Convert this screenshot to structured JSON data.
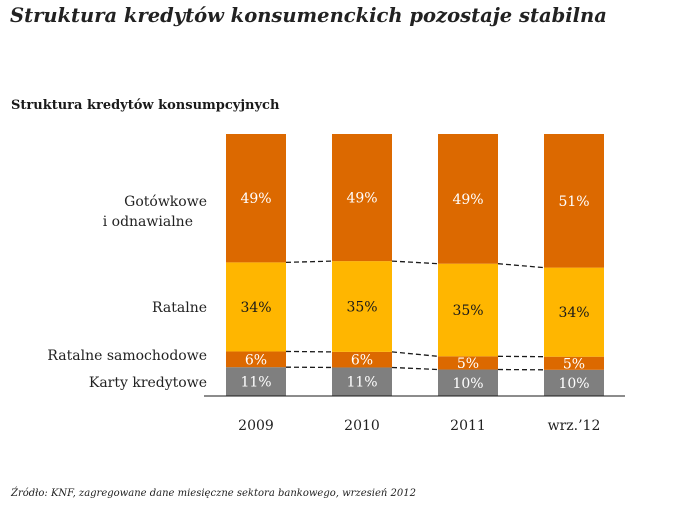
{
  "title": "Struktura kredytów konsumenckich pozostaje stabilna",
  "chart_data": {
    "type": "bar",
    "stacked": true,
    "percent": true,
    "title": "Struktura kredytów konsumpcyjnych",
    "categories": [
      "2009",
      "2010",
      "2011",
      "wrz.’12"
    ],
    "series": [
      {
        "name": "Karty kredytowe",
        "values": [
          11,
          11,
          10,
          10
        ],
        "labels": [
          "11%",
          "11%",
          "10%",
          "10%"
        ],
        "color": "#7f7f7f"
      },
      {
        "name": "Ratalne samochodowe",
        "values": [
          6,
          6,
          5,
          5
        ],
        "labels": [
          "6%",
          "6%",
          "5%",
          "5%"
        ],
        "color": "#dc6900"
      },
      {
        "name": "Ratalne",
        "values": [
          34,
          35,
          35,
          34
        ],
        "labels": [
          "34%",
          "35%",
          "35%",
          "34%"
        ],
        "color": "#ffb600"
      },
      {
        "name": "Gotówkowe i odnawialne",
        "values": [
          49,
          49,
          49,
          51
        ],
        "labels": [
          "49%",
          "49%",
          "49%",
          "51%"
        ],
        "color": "#dc6900"
      }
    ],
    "legend_lines": [
      [
        "Karty kredytowe"
      ],
      [
        "Ratalne samochodowe"
      ],
      [
        "Ratalne"
      ],
      [
        "Gotówkowe",
        "i odnawialne"
      ]
    ],
    "legend_position": "left",
    "connector_lines": "dashed",
    "xlabel": "",
    "ylabel": ""
  },
  "source": "Źródło: KNF, zagregowane dane miesięczne sektora bankowego, wrzesień 2012"
}
